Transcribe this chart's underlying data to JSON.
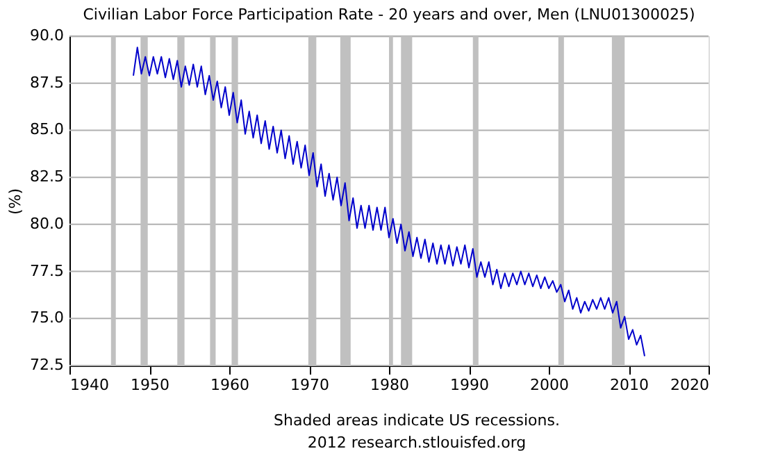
{
  "chart_data": {
    "type": "line",
    "title": "Civilian Labor Force Participation Rate - 20 years and over, Men (LNU01300025)",
    "ylabel": "(%)",
    "annotations": [
      "Shaded areas indicate US recessions.",
      "2012 research.stlouisfed.org"
    ],
    "x": [
      1948.0,
      1948.5,
      1949.0,
      1949.5,
      1950.0,
      1950.5,
      1951.0,
      1951.5,
      1952.0,
      1952.5,
      1953.0,
      1953.5,
      1954.0,
      1954.5,
      1955.0,
      1955.5,
      1956.0,
      1956.5,
      1957.0,
      1957.5,
      1958.0,
      1958.5,
      1959.0,
      1959.5,
      1960.0,
      1960.5,
      1961.0,
      1961.5,
      1962.0,
      1962.5,
      1963.0,
      1963.5,
      1964.0,
      1964.5,
      1965.0,
      1965.5,
      1966.0,
      1966.5,
      1967.0,
      1967.5,
      1968.0,
      1968.5,
      1969.0,
      1969.5,
      1970.0,
      1970.5,
      1971.0,
      1971.5,
      1972.0,
      1972.5,
      1973.0,
      1973.5,
      1974.0,
      1974.5,
      1975.0,
      1975.5,
      1976.0,
      1976.5,
      1977.0,
      1977.5,
      1978.0,
      1978.5,
      1979.0,
      1979.5,
      1980.0,
      1980.5,
      1981.0,
      1981.5,
      1982.0,
      1982.5,
      1983.0,
      1983.5,
      1984.0,
      1984.5,
      1985.0,
      1985.5,
      1986.0,
      1986.5,
      1987.0,
      1987.5,
      1988.0,
      1988.5,
      1989.0,
      1989.5,
      1990.0,
      1990.5,
      1991.0,
      1991.5,
      1992.0,
      1992.5,
      1993.0,
      1993.5,
      1994.0,
      1994.5,
      1995.0,
      1995.5,
      1996.0,
      1996.5,
      1997.0,
      1997.5,
      1998.0,
      1998.5,
      1999.0,
      1999.5,
      2000.0,
      2000.5,
      2001.0,
      2001.5,
      2002.0,
      2002.5,
      2003.0,
      2003.5,
      2004.0,
      2004.5,
      2005.0,
      2005.5,
      2006.0,
      2006.5,
      2007.0,
      2007.5,
      2008.0,
      2008.5,
      2009.0,
      2009.5,
      2010.0,
      2010.5,
      2011.0,
      2011.5,
      2012.0
    ],
    "series": [
      {
        "color": "#0000cc",
        "values": [
          87.9,
          89.4,
          88.0,
          88.9,
          87.9,
          88.9,
          88.0,
          88.9,
          87.8,
          88.8,
          87.7,
          88.7,
          87.3,
          88.4,
          87.4,
          88.5,
          87.3,
          88.4,
          86.9,
          87.9,
          86.6,
          87.6,
          86.2,
          87.3,
          85.8,
          87.0,
          85.4,
          86.6,
          84.8,
          86.0,
          84.6,
          85.8,
          84.3,
          85.5,
          84.0,
          85.2,
          83.8,
          85.0,
          83.5,
          84.7,
          83.2,
          84.4,
          83.0,
          84.2,
          82.6,
          83.8,
          82.0,
          83.2,
          81.5,
          82.7,
          81.3,
          82.5,
          81.0,
          82.2,
          80.2,
          81.4,
          79.8,
          81.0,
          79.8,
          81.0,
          79.7,
          80.9,
          79.7,
          80.9,
          79.3,
          80.3,
          79.0,
          80.0,
          78.6,
          79.6,
          78.3,
          79.3,
          78.2,
          79.2,
          78.0,
          79.0,
          77.9,
          78.9,
          77.9,
          78.9,
          77.8,
          78.8,
          77.9,
          78.9,
          77.7,
          78.7,
          77.2,
          78.0,
          77.2,
          78.0,
          76.8,
          77.6,
          76.6,
          77.4,
          76.7,
          77.4,
          76.8,
          77.5,
          76.8,
          77.4,
          76.7,
          77.3,
          76.6,
          77.2,
          76.6,
          77.0,
          76.4,
          76.8,
          75.9,
          76.5,
          75.5,
          76.1,
          75.3,
          75.9,
          75.4,
          76.0,
          75.5,
          76.1,
          75.5,
          76.1,
          75.3,
          75.9,
          74.5,
          75.1,
          73.9,
          74.4,
          73.6,
          74.1,
          73.0
        ]
      }
    ],
    "xlim": [
      1940,
      2020
    ],
    "xticks": [
      1940,
      1950,
      1960,
      1970,
      1980,
      1990,
      2000,
      2010,
      2020
    ],
    "ylim": [
      72.5,
      90.0
    ],
    "yticks": [
      {
        "value": 72.5,
        "label": "72.5"
      },
      {
        "value": 75,
        "label": "75.0"
      },
      {
        "value": 77.5,
        "label": "77.5"
      },
      {
        "value": 80,
        "label": "80.0"
      },
      {
        "value": 82.5,
        "label": "82.5"
      },
      {
        "value": 85,
        "label": "85.0"
      },
      {
        "value": 87.5,
        "label": "87.5"
      },
      {
        "value": 90,
        "label": "90.0"
      }
    ],
    "bands": [
      {
        "axis": "x",
        "from": 1945.2,
        "to": 1945.8,
        "color": "#c0c0c0"
      },
      {
        "axis": "x",
        "from": 1948.9,
        "to": 1949.8,
        "color": "#c0c0c0"
      },
      {
        "axis": "x",
        "from": 1953.5,
        "to": 1954.4,
        "color": "#c0c0c0"
      },
      {
        "axis": "x",
        "from": 1957.6,
        "to": 1958.3,
        "color": "#c0c0c0"
      },
      {
        "axis": "x",
        "from": 1960.3,
        "to": 1961.1,
        "color": "#c0c0c0"
      },
      {
        "axis": "x",
        "from": 1969.9,
        "to": 1970.9,
        "color": "#c0c0c0"
      },
      {
        "axis": "x",
        "from": 1973.9,
        "to": 1975.2,
        "color": "#c0c0c0"
      },
      {
        "axis": "x",
        "from": 1980.0,
        "to": 1980.5,
        "color": "#c0c0c0"
      },
      {
        "axis": "x",
        "from": 1981.5,
        "to": 1982.9,
        "color": "#c0c0c0"
      },
      {
        "axis": "x",
        "from": 1990.5,
        "to": 1991.2,
        "color": "#c0c0c0"
      },
      {
        "axis": "x",
        "from": 2001.2,
        "to": 2001.9,
        "color": "#c0c0c0"
      },
      {
        "axis": "x",
        "from": 2007.9,
        "to": 2009.5,
        "color": "#c0c0c0"
      }
    ],
    "grid": "y",
    "marker": "none",
    "line_style": "solid"
  }
}
